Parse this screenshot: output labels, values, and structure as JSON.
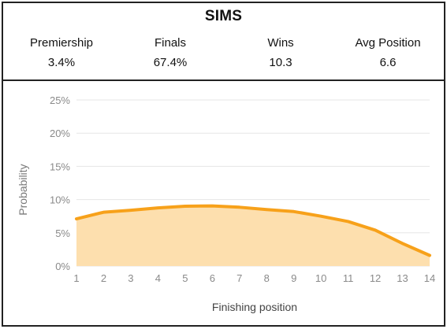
{
  "card": {
    "title": "SIMS",
    "stats": [
      {
        "label": "Premiership",
        "value": "3.4%"
      },
      {
        "label": "Finals",
        "value": "67.4%"
      },
      {
        "label": "Wins",
        "value": "10.3"
      },
      {
        "label": "Avg Position",
        "value": "6.6"
      }
    ]
  },
  "colors": {
    "line": "#F7A11A",
    "fill": "#FDDFAE",
    "grid": "#E6E6E6",
    "axis_text": "#8A8A8A",
    "border": "#222222"
  },
  "chart_data": {
    "type": "area",
    "x": [
      1,
      2,
      3,
      4,
      5,
      6,
      7,
      8,
      9,
      10,
      11,
      12,
      13,
      14
    ],
    "series": [
      {
        "values": [
          7.1,
          8.1,
          8.4,
          8.75,
          9.0,
          9.05,
          8.85,
          8.5,
          8.2,
          7.5,
          6.7,
          5.4,
          3.4,
          1.6
        ]
      }
    ],
    "xlabel": "Finishing position",
    "ylabel": "Probability",
    "xlim": [
      1,
      14
    ],
    "ylim": [
      0,
      25
    ],
    "yticks": [
      0,
      5,
      10,
      15,
      20,
      25
    ],
    "ytick_labels": [
      "0%",
      "5%",
      "10%",
      "15%",
      "20%",
      "25%"
    ],
    "xticks": [
      1,
      2,
      3,
      4,
      5,
      6,
      7,
      8,
      9,
      10,
      11,
      12,
      13,
      14
    ],
    "grid": true,
    "legend": "none"
  }
}
